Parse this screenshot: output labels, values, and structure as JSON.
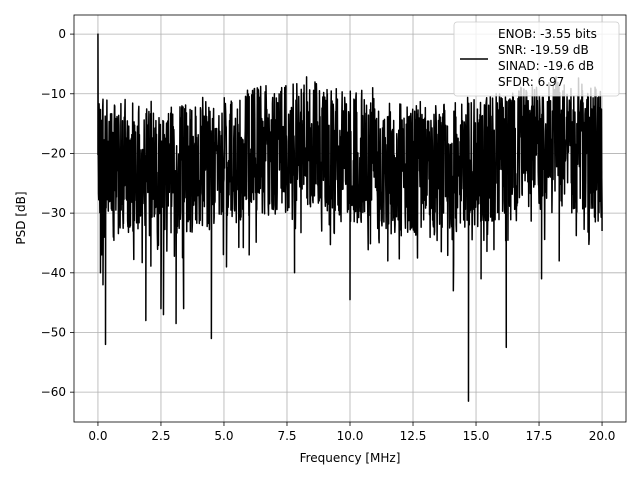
{
  "chart_data": {
    "type": "line",
    "title": "",
    "xlabel": "Frequency [MHz]",
    "ylabel": "PSD [dB]",
    "xlim": [
      -0.95,
      20.95
    ],
    "ylim": [
      -65,
      3.2
    ],
    "grid": true,
    "legend_position": "top-right",
    "x_ticks": [
      0,
      2.5,
      5,
      7.5,
      10,
      12.5,
      15,
      17.5,
      20
    ],
    "x_tick_labels": [
      "0.0",
      "2.5",
      "5.0",
      "7.5",
      "10.0",
      "12.5",
      "15.0",
      "17.5",
      "20.0"
    ],
    "y_ticks": [
      0,
      -10,
      -20,
      -30,
      -40,
      -50,
      -60
    ],
    "y_tick_labels": [
      "0",
      "−10",
      "−20",
      "−30",
      "−40",
      "−50",
      "−60"
    ],
    "series": [
      {
        "color": "#000000",
        "legend_lines": [
          "ENOB: -3.55 bits",
          "SNR: -19.59 dB",
          "SINAD: -19.6 dB",
          "SFDR: 6.97"
        ],
        "noise_floor_db": [
          -33,
          -14
        ],
        "x": [
          0,
          0.02,
          0.05,
          0.1,
          0.15,
          0.2,
          0.3,
          0.45,
          0.6,
          1.0,
          1.9,
          2.5,
          2.6,
          3.1,
          3.4,
          4.5,
          5.1,
          6.0,
          7.0,
          7.8,
          9.1,
          10.0,
          10.9,
          11.5,
          13.4,
          14.1,
          14.7,
          15.2,
          16.2,
          16.4,
          17.6,
          18.3,
          19.0,
          20.0
        ],
        "y": [
          0,
          -24,
          -13,
          -40,
          -37,
          -42,
          -52,
          -27,
          -30,
          -20,
          -48,
          -46,
          -47,
          -48.5,
          -46,
          -51,
          -39,
          -37,
          -10,
          -40,
          -10,
          -44.5,
          -9,
          -38,
          -12,
          -43,
          -61.5,
          -41,
          -52.5,
          -15,
          -41,
          -38,
          -15,
          -33
        ]
      }
    ]
  }
}
